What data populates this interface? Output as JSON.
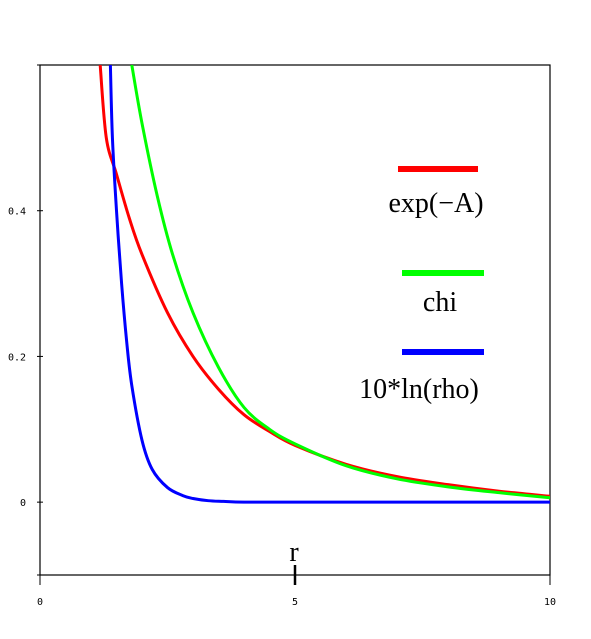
{
  "chart_data": {
    "type": "line",
    "xlabel": "r",
    "ylabel": "",
    "xlim": [
      0,
      10
    ],
    "ylim": [
      -0.1,
      0.6
    ],
    "x_ticks": [
      0,
      5,
      10
    ],
    "x_tick_labels": [
      "0",
      "5",
      "10"
    ],
    "y_ticks": [
      0,
      0.2,
      0.4
    ],
    "y_tick_labels": [
      "0",
      "0.2",
      "0.4"
    ],
    "grid": false,
    "legend_position": "right",
    "series": [
      {
        "name": "exp(−A)",
        "color": "#ff0000",
        "x": [
          1.18,
          1.3,
          1.5,
          1.75,
          2.0,
          2.5,
          3.0,
          3.5,
          4.0,
          4.5,
          5.0,
          6.0,
          7.0,
          8.0,
          9.0,
          10.0
        ],
        "y": [
          0.6,
          0.5,
          0.45,
          0.39,
          0.34,
          0.26,
          0.2,
          0.155,
          0.12,
          0.097,
          0.078,
          0.052,
          0.035,
          0.024,
          0.015,
          0.008
        ]
      },
      {
        "name": "chi",
        "color": "#00ff00",
        "x": [
          1.8,
          2.0,
          2.3,
          2.6,
          3.0,
          3.5,
          4.0,
          4.5,
          5.0,
          6.0,
          7.0,
          8.0,
          9.0,
          10.0
        ],
        "y": [
          0.6,
          0.52,
          0.42,
          0.34,
          0.26,
          0.185,
          0.13,
          0.1,
          0.08,
          0.05,
          0.032,
          0.021,
          0.013,
          0.006
        ]
      },
      {
        "name": "10*ln(rho)",
        "color": "#0000ff",
        "x": [
          1.38,
          1.42,
          1.5,
          1.6,
          1.7,
          1.8,
          2.0,
          2.2,
          2.5,
          2.8,
          3.0,
          3.3,
          3.6,
          4.0,
          5.0,
          7.0,
          10.0
        ],
        "y": [
          0.6,
          0.5,
          0.4,
          0.3,
          0.22,
          0.16,
          0.085,
          0.045,
          0.02,
          0.009,
          0.005,
          0.002,
          0.001,
          0.0,
          0.0,
          0.0,
          0.0
        ]
      }
    ]
  }
}
